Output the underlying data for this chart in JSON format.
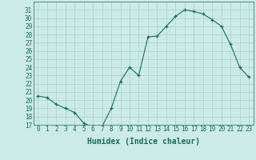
{
  "x": [
    0,
    1,
    2,
    3,
    4,
    5,
    6,
    7,
    8,
    9,
    10,
    11,
    12,
    13,
    14,
    15,
    16,
    17,
    18,
    19,
    20,
    21,
    22,
    23
  ],
  "y": [
    20.5,
    20.3,
    19.5,
    19.0,
    18.5,
    17.2,
    16.7,
    16.8,
    19.0,
    22.3,
    24.0,
    23.0,
    27.7,
    27.8,
    29.0,
    30.2,
    31.0,
    30.8,
    30.5,
    29.8,
    29.0,
    26.8,
    24.0,
    22.8
  ],
  "line_color": "#1a6b5a",
  "bg_color": "#cceae8",
  "grid_color": "#aad4d0",
  "xlabel": "Humidex (Indice chaleur)",
  "xlim": [
    -0.5,
    23.5
  ],
  "ylim": [
    17,
    32
  ],
  "xticks": [
    0,
    1,
    2,
    3,
    4,
    5,
    6,
    7,
    8,
    9,
    10,
    11,
    12,
    13,
    14,
    15,
    16,
    17,
    18,
    19,
    20,
    21,
    22,
    23
  ],
  "yticks": [
    17,
    18,
    19,
    20,
    21,
    22,
    23,
    24,
    25,
    26,
    27,
    28,
    29,
    30,
    31
  ],
  "tick_fontsize": 5.5,
  "label_fontsize": 7
}
